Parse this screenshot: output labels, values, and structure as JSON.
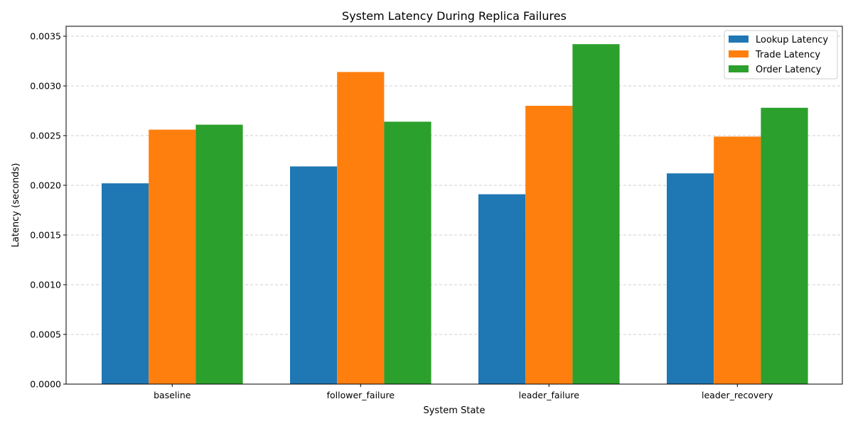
{
  "chart_data": {
    "type": "bar",
    "title": "System Latency During Replica Failures",
    "xlabel": "System State",
    "ylabel": "Latency (seconds)",
    "categories": [
      "baseline",
      "follower_failure",
      "leader_failure",
      "leader_recovery"
    ],
    "series": [
      {
        "name": "Lookup Latency",
        "color": "#1f77b4",
        "values": [
          0.00202,
          0.00219,
          0.00191,
          0.00212
        ]
      },
      {
        "name": "Trade Latency",
        "color": "#ff7f0e",
        "values": [
          0.00256,
          0.00314,
          0.0028,
          0.00249
        ]
      },
      {
        "name": "Order Latency",
        "color": "#2ca02c",
        "values": [
          0.00261,
          0.00264,
          0.00342,
          0.00278
        ]
      }
    ],
    "ylim": [
      0,
      0.0036
    ],
    "yticks": [
      0.0,
      0.0005,
      0.001,
      0.0015,
      0.002,
      0.0025,
      0.003,
      0.0035
    ],
    "ytick_labels": [
      "0.0000",
      "0.0005",
      "0.0010",
      "0.0015",
      "0.0020",
      "0.0025",
      "0.0030",
      "0.0035"
    ],
    "grid": "y-dashed",
    "legend_position": "top-right"
  }
}
